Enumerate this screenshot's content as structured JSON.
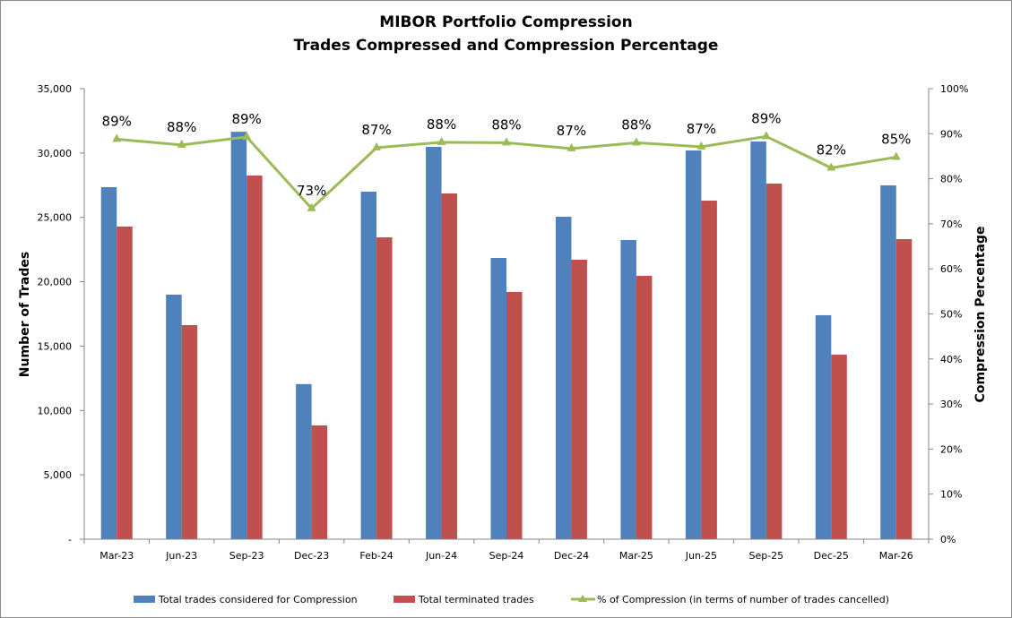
{
  "chart_data": {
    "type": "bar",
    "title": "MIBOR Portfolio Compression",
    "subtitle": "Trades Compressed and Compression Percentage",
    "xlabel": "",
    "ylabel": "Number of Trades",
    "y2label": "Compression Percentage",
    "ylim": [
      0,
      35000
    ],
    "y2lim": [
      0,
      100
    ],
    "yticks": [
      0,
      5000,
      10000,
      15000,
      20000,
      25000,
      30000,
      35000
    ],
    "ytick_labels": [
      "-",
      "5,000",
      "10,000",
      "15,000",
      "20,000",
      "25,000",
      "30,000",
      "35,000"
    ],
    "y2ticks": [
      0,
      10,
      20,
      30,
      40,
      50,
      60,
      70,
      80,
      90,
      100
    ],
    "y2tick_labels": [
      "0%",
      "10%",
      "20%",
      "30%",
      "40%",
      "50%",
      "60%",
      "70%",
      "80%",
      "90%",
      "100%"
    ],
    "grid": false,
    "legend_position": "bottom",
    "categories": [
      "Mar-23",
      "Jun-23",
      "Sep-23",
      "Dec-23",
      "Feb-24",
      "Jun-24",
      "Sep-24",
      "Dec-24",
      "Mar-25",
      "Jun-25",
      "Sep-25",
      "Dec-25",
      "Mar-26"
    ],
    "series": [
      {
        "name": "Total trades considered for Compression",
        "type": "bar",
        "axis": "left",
        "color": "#4f81bd",
        "values": [
          27350,
          19000,
          31650,
          12050,
          27000,
          30480,
          21850,
          25050,
          23240,
          30200,
          30900,
          17400,
          27490
        ]
      },
      {
        "name": "Total terminated trades",
        "type": "bar",
        "axis": "left",
        "color": "#c0504d",
        "values": [
          24290,
          16630,
          28250,
          8840,
          23450,
          26860,
          19210,
          21710,
          20460,
          26300,
          27630,
          14340,
          23310
        ]
      },
      {
        "name": "% of Compression (in terms of number of trades cancelled)",
        "type": "line",
        "axis": "right",
        "color": "#9bbb59",
        "marker": "triangle",
        "values": [
          88.8,
          87.5,
          89.3,
          73.4,
          86.9,
          88.1,
          88.0,
          86.7,
          88.0,
          87.1,
          89.4,
          82.4,
          84.8
        ],
        "data_labels": [
          "89%",
          "88%",
          "89%",
          "73%",
          "87%",
          "88%",
          "88%",
          "87%",
          "88%",
          "87%",
          "89%",
          "82%",
          "85%"
        ]
      }
    ]
  }
}
